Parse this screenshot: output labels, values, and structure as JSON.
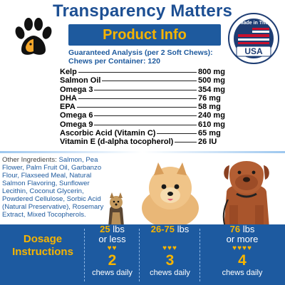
{
  "header": {
    "title": "Transparency Matters",
    "banner": "Product Info",
    "seal_top_text": "Made in The",
    "seal_country": "USA"
  },
  "analysis": {
    "heading_line1": "Guaranteed Analysis (per 2 Soft Chews):",
    "heading_line2": "Chews per Container: 120"
  },
  "nutrients": [
    {
      "name": "Kelp",
      "value": "800 mg"
    },
    {
      "name": "Salmon Oil",
      "value": "500 mg"
    },
    {
      "name": "Omega 3",
      "value": "354 mg"
    },
    {
      "name": "DHA",
      "value": "76 mg"
    },
    {
      "name": "EPA",
      "value": "58 mg"
    },
    {
      "name": "Omega 6",
      "value": "240 mg"
    },
    {
      "name": "Omega 9",
      "value": "610 mg"
    },
    {
      "name": "Ascorbic Acid (Vitamin C)",
      "value": "65 mg"
    },
    {
      "name": "Vitamin E (d-alpha tocopherol)",
      "value": "26 IU"
    }
  ],
  "ingredients": {
    "label": "Other Ingredients:",
    "text": "Salmon, Pea Flower, Palm Fruit Oil, Garbanzo Flour, Flaxseed Meal, Natural Salmon Flavoring, Sunflower Lecithin, Coconut Glycerin, Powdered Cellulose, Sorbic Acid (Natural Preservative), Rosemary Extract, Mixed Tocopherols."
  },
  "dosage": {
    "label_line1": "Dosage",
    "label_line2": "Instructions",
    "columns": [
      {
        "weight_num": "25",
        "weight_unit": "lbs",
        "weight_note": "or less",
        "hearts": "♥♥",
        "count": "2",
        "daily": "chews daily"
      },
      {
        "weight_num": "26-75",
        "weight_unit": "lbs",
        "weight_note": "",
        "hearts": "♥♥♥",
        "count": "3",
        "daily": "chews daily"
      },
      {
        "weight_num": "76",
        "weight_unit": "lbs",
        "weight_note": "or more",
        "hearts": "♥♥♥♥",
        "count": "4",
        "daily": "chews daily"
      }
    ]
  },
  "colors": {
    "brand_blue": "#1e5a9e",
    "accent_gold": "#f6b400",
    "text_black": "#000000"
  }
}
